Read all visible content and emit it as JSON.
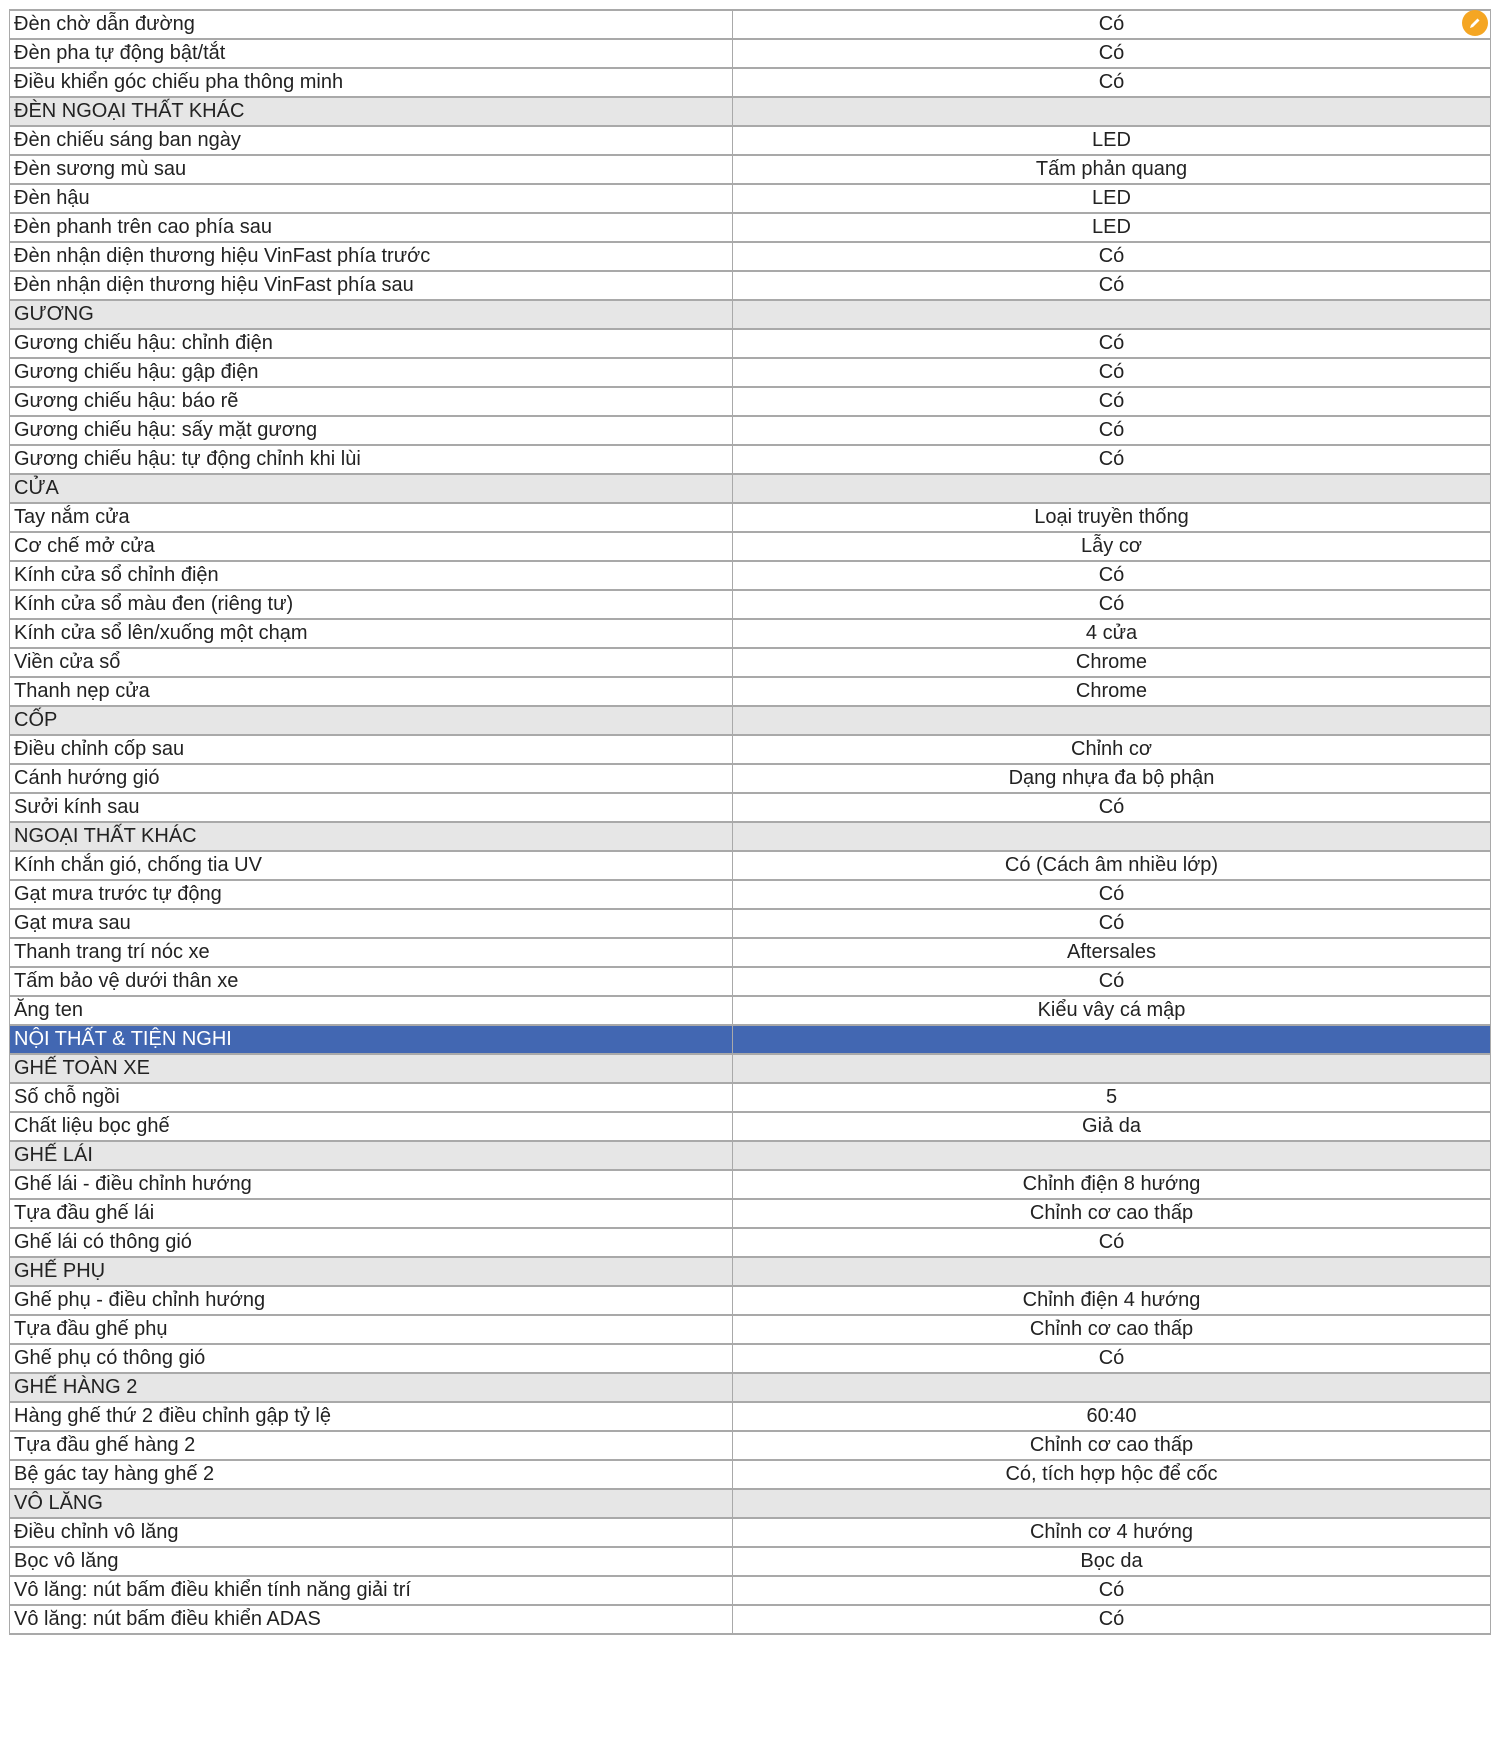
{
  "colors": {
    "category_bg": "#4267b2",
    "section_bg": "#e6e6e6",
    "border": "#a9a9a9",
    "edit_button": "#f5a623"
  },
  "edit_button": {
    "icon": "pencil-icon"
  },
  "rows": [
    {
      "type": "row",
      "label": "Đèn chờ dẫn đường",
      "value": "Có"
    },
    {
      "type": "row",
      "label": "Đèn pha tự động bật/tắt",
      "value": "Có"
    },
    {
      "type": "row",
      "label": "Điều khiển góc chiếu pha thông minh",
      "value": "Có"
    },
    {
      "type": "section",
      "label": "ĐÈN NGOẠI THẤT KHÁC",
      "value": ""
    },
    {
      "type": "row",
      "label": "Đèn chiếu sáng ban ngày",
      "value": "LED"
    },
    {
      "type": "row",
      "label": "Đèn sương mù sau",
      "value": "Tấm phản quang"
    },
    {
      "type": "row",
      "label": "Đèn hậu",
      "value": "LED"
    },
    {
      "type": "row",
      "label": "Đèn phanh trên cao phía sau",
      "value": "LED"
    },
    {
      "type": "row",
      "label": "Đèn nhận diện thương hiệu VinFast phía trước",
      "value": "Có"
    },
    {
      "type": "row",
      "label": "Đèn nhận diện thương hiệu VinFast phía sau",
      "value": "Có"
    },
    {
      "type": "section",
      "label": "GƯƠNG",
      "value": ""
    },
    {
      "type": "row",
      "label": "Gương chiếu hậu: chỉnh điện",
      "value": "Có"
    },
    {
      "type": "row",
      "label": "Gương chiếu hậu: gập điện",
      "value": "Có"
    },
    {
      "type": "row",
      "label": "Gương chiếu hậu: báo rẽ",
      "value": "Có"
    },
    {
      "type": "row",
      "label": "Gương chiếu hậu: sấy mặt gương",
      "value": "Có"
    },
    {
      "type": "row",
      "label": "Gương chiếu hậu: tự động chỉnh khi lùi",
      "value": "Có"
    },
    {
      "type": "section",
      "label": "CỬA",
      "value": ""
    },
    {
      "type": "row",
      "label": "Tay nắm cửa",
      "value": "Loại truyền thống"
    },
    {
      "type": "row",
      "label": "Cơ chế mở cửa",
      "value": "Lẫy cơ"
    },
    {
      "type": "row",
      "label": "Kính cửa sổ chỉnh điện",
      "value": "Có"
    },
    {
      "type": "row",
      "label": "Kính cửa sổ màu đen (riêng tư)",
      "value": "Có"
    },
    {
      "type": "row",
      "label": "Kính cửa sổ lên/xuống một chạm",
      "value": "4 cửa"
    },
    {
      "type": "row",
      "label": "Viền cửa sổ",
      "value": "Chrome"
    },
    {
      "type": "row",
      "label": "Thanh nẹp cửa",
      "value": "Chrome"
    },
    {
      "type": "section",
      "label": "CỐP",
      "value": ""
    },
    {
      "type": "row",
      "label": "Điều chỉnh cốp sau",
      "value": "Chỉnh cơ"
    },
    {
      "type": "row",
      "label": "Cánh hướng gió",
      "value": "Dạng nhựa đa bộ phận"
    },
    {
      "type": "row",
      "label": "Sưởi kính sau",
      "value": "Có"
    },
    {
      "type": "section",
      "label": "NGOẠI THẤT KHÁC",
      "value": ""
    },
    {
      "type": "row",
      "label": "Kính chắn gió, chống tia UV",
      "value": "Có (Cách âm nhiều lớp)"
    },
    {
      "type": "row",
      "label": "Gạt mưa trước tự động",
      "value": "Có"
    },
    {
      "type": "row",
      "label": "Gạt mưa sau",
      "value": "Có"
    },
    {
      "type": "row",
      "label": "Thanh trang trí nóc xe",
      "value": "Aftersales"
    },
    {
      "type": "row",
      "label": "Tấm bảo vệ dưới thân xe",
      "value": "Có"
    },
    {
      "type": "row",
      "label": "Ăng ten",
      "value": "Kiểu vây cá mập"
    },
    {
      "type": "category",
      "label": "NỘI THẤT & TIỆN NGHI",
      "value": ""
    },
    {
      "type": "section",
      "label": "GHẾ TOÀN XE",
      "value": ""
    },
    {
      "type": "row",
      "label": "Số chỗ ngồi",
      "value": "5"
    },
    {
      "type": "row",
      "label": "Chất liệu bọc ghế",
      "value": "Giả da"
    },
    {
      "type": "section",
      "label": "GHẾ LÁI",
      "value": ""
    },
    {
      "type": "row",
      "label": "Ghế lái - điều chỉnh hướng",
      "value": "Chỉnh điện 8 hướng"
    },
    {
      "type": "row",
      "label": "Tựa đầu ghế lái",
      "value": "Chỉnh cơ cao thấp"
    },
    {
      "type": "row",
      "label": "Ghế lái có thông gió",
      "value": "Có"
    },
    {
      "type": "section",
      "label": "GHẾ PHỤ",
      "value": ""
    },
    {
      "type": "row",
      "label": "Ghế phụ - điều chỉnh hướng",
      "value": "Chỉnh điện 4 hướng"
    },
    {
      "type": "row",
      "label": "Tựa đầu ghế phụ",
      "value": "Chỉnh cơ cao thấp"
    },
    {
      "type": "row",
      "label": "Ghế phụ có thông gió",
      "value": "Có"
    },
    {
      "type": "section",
      "label": "GHẾ HÀNG 2",
      "value": ""
    },
    {
      "type": "row",
      "label": "Hàng ghế thứ 2 điều chỉnh gập tỷ lệ",
      "value": "60:40"
    },
    {
      "type": "row",
      "label": "Tựa đầu ghế hàng 2",
      "value": "Chỉnh cơ cao thấp"
    },
    {
      "type": "row",
      "label": "Bệ gác tay hàng ghế 2",
      "value": "Có, tích hợp hộc để cốc"
    },
    {
      "type": "section",
      "label": "VÔ LĂNG",
      "value": ""
    },
    {
      "type": "row",
      "label": "Điều chỉnh vô lăng",
      "value": "Chỉnh cơ 4 hướng"
    },
    {
      "type": "row",
      "label": "Bọc vô lăng",
      "value": "Bọc da"
    },
    {
      "type": "row",
      "label": "Vô lăng: nút bấm điều khiển tính năng giải trí",
      "value": "Có"
    },
    {
      "type": "row",
      "label": "Vô lăng: nút bấm điều khiển ADAS",
      "value": "Có"
    }
  ]
}
